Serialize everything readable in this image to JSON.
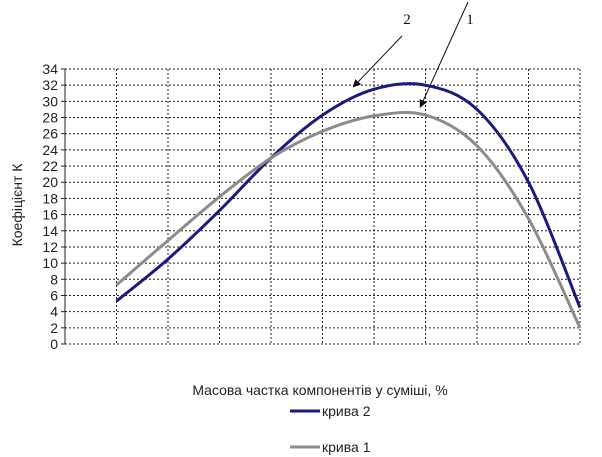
{
  "chart_data": {
    "type": "line",
    "title": "",
    "xlabel": "Масова частка компонентів у суміші, %",
    "ylabel": "Коефіцієнт К",
    "ylim": [
      0,
      34
    ],
    "yticks": [
      0,
      2,
      4,
      6,
      8,
      10,
      12,
      14,
      16,
      18,
      20,
      22,
      24,
      26,
      28,
      30,
      32,
      34
    ],
    "xlim": [
      0,
      10
    ],
    "grid": true,
    "legend_position": "bottom",
    "series": [
      {
        "name": "крива 2",
        "color": "#1a1a80",
        "x": [
          1,
          2,
          3,
          4,
          5,
          6,
          7,
          8,
          9,
          10
        ],
        "values": [
          5.3,
          10.5,
          16.5,
          23.0,
          28.3,
          31.5,
          32.0,
          29.0,
          20.0,
          4.5
        ]
      },
      {
        "name": "крива 1",
        "color": "#8c8c8c",
        "x": [
          1,
          2,
          3,
          4,
          5,
          6,
          7,
          8,
          9,
          10
        ],
        "values": [
          7.3,
          12.8,
          18.2,
          23.0,
          26.3,
          28.2,
          28.3,
          24.5,
          15.5,
          2.0
        ]
      }
    ],
    "annotations": [
      {
        "label": "2",
        "points_to_series": "крива 2"
      },
      {
        "label": "1",
        "points_to_series": "крива 1"
      }
    ]
  }
}
